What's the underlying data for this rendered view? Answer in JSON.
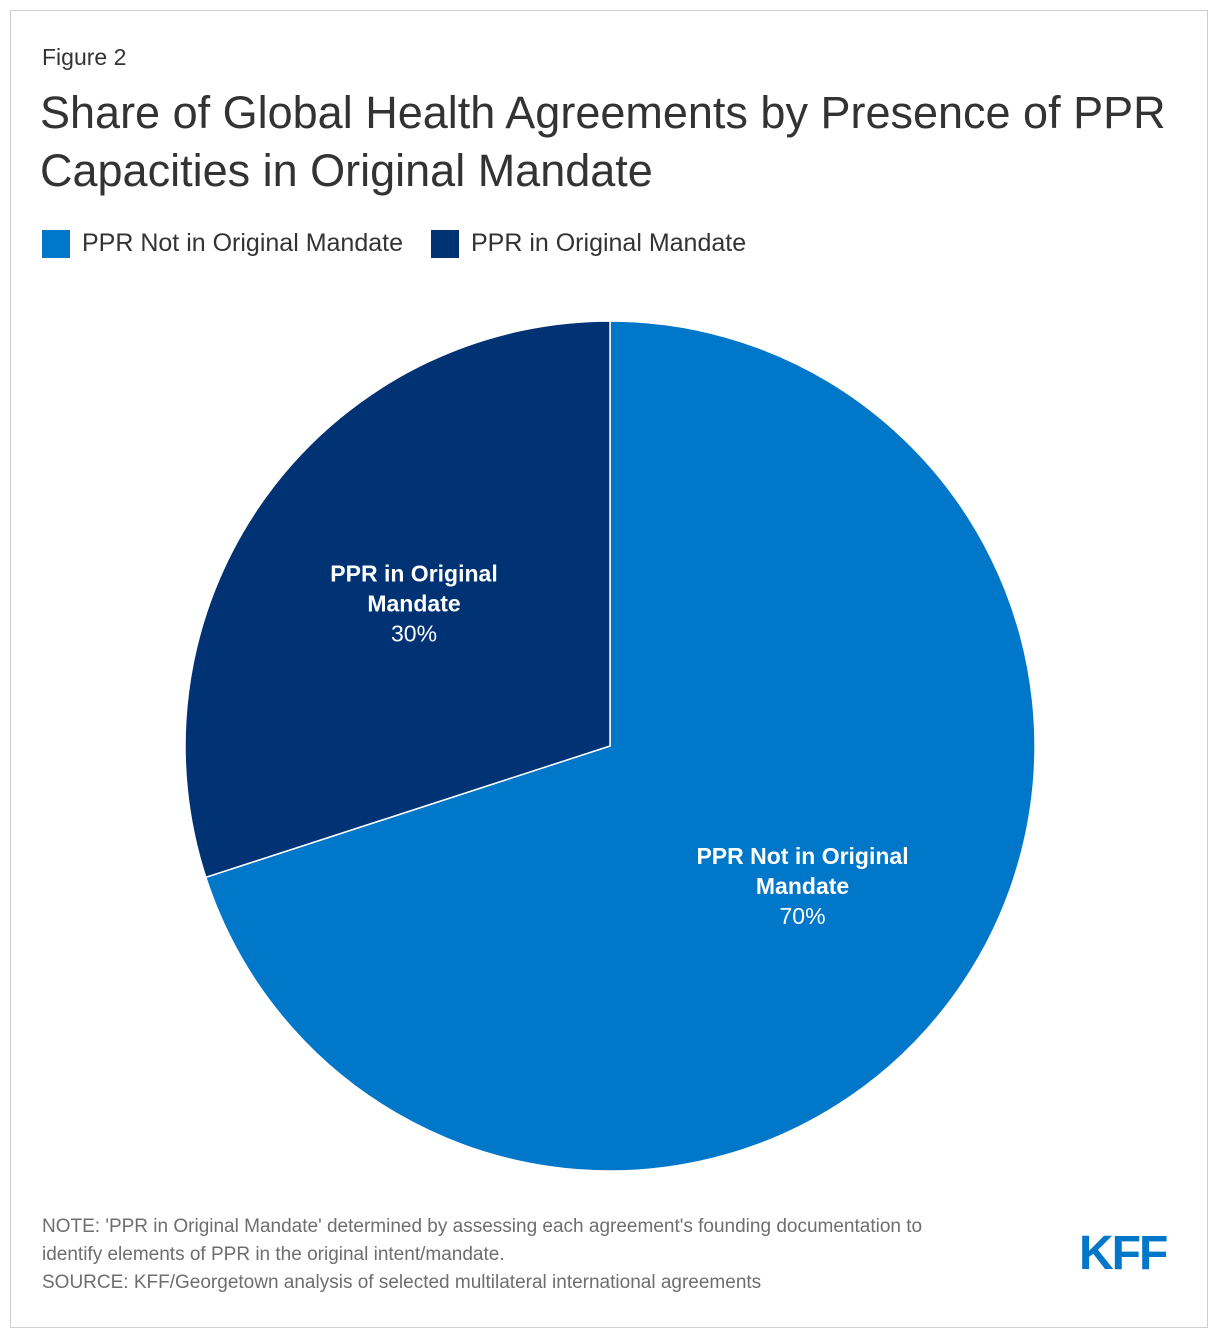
{
  "header": {
    "figure_label": "Figure 2",
    "title": "Share of Global Health Agreements by Presence of PPR Capacities in Original Mandate"
  },
  "colors": {
    "not_in_mandate": "#0077c8",
    "in_mandate": "#003274",
    "logo": "#0077c8"
  },
  "chart_data": {
    "type": "pie",
    "title": "Share of Global Health Agreements by Presence of PPR Capacities in Original Mandate",
    "legend_position": "top-left",
    "slices": [
      {
        "name": "PPR Not in Original Mandate",
        "label_lines": [
          "PPR Not in Original",
          "Mandate"
        ],
        "value": 70,
        "value_label": "70%",
        "color": "#0077c8"
      },
      {
        "name": "PPR in Original Mandate",
        "label_lines": [
          "PPR in Original",
          "Mandate"
        ],
        "value": 30,
        "value_label": "30%",
        "color": "#003274"
      }
    ]
  },
  "footer": {
    "note_line1": "NOTE: 'PPR in Original Mandate' determined by assessing each agreement's founding documentation to",
    "note_line2": "identify elements of PPR in the original intent/mandate.",
    "source": "SOURCE: KFF/Georgetown analysis of selected multilateral international agreements",
    "logo_text": "KFF"
  }
}
